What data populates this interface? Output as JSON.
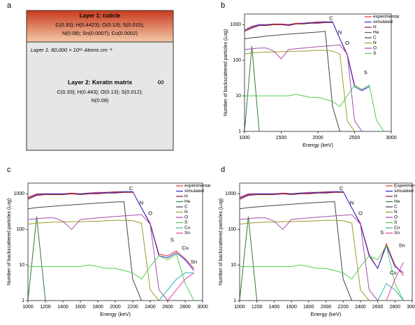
{
  "panels": {
    "labels": [
      "a",
      "b",
      "c",
      "d"
    ]
  },
  "diagram": {
    "layer1_title": "Layer 1: cuticle",
    "layer1_composition": [
      "C(0.33); H(0.4423); O(0.13); S(0.015);",
      "N(0.08); Sn(0.0007); Cu(0.0002)"
    ],
    "layer1_density": "Layer 1: 80,000 × 10¹⁵ Atoms cm⁻²",
    "layer2_title": "Layer 2: Keratin matrix",
    "layer2_symbol": "∞",
    "layer2_composition": [
      "C(0.33); H(0.443); O(0.13); S(0.012);",
      "N(0.08)"
    ]
  },
  "chart_data": [
    {
      "type": "line",
      "log_y": true,
      "xlabel": "Energy (keV)",
      "ylabel": "Number of backscattered particles (Log)",
      "x": [
        1000,
        1100,
        1200,
        1300,
        1400,
        1500,
        1600,
        1700,
        1800,
        1900,
        2000,
        2100,
        2200,
        2300,
        2400,
        2500,
        2600,
        2700,
        2800,
        2900,
        3000
      ],
      "xlim": [
        1000,
        3000
      ],
      "xticks": [
        1000,
        1500,
        2000,
        2500,
        3000
      ],
      "ylim": [
        1,
        2000
      ],
      "yticks": [
        1,
        10,
        100,
        1000
      ],
      "series": [
        {
          "name": "experimental",
          "color": "#e8312f",
          "values": [
            700,
            900,
            1000,
            1000,
            1050,
            1050,
            1000,
            1100,
            1100,
            1150,
            1200,
            1200,
            1200,
            400,
            150,
            20,
            15,
            20,
            null,
            null,
            null
          ]
        },
        {
          "name": "simulated",
          "color": "#2a2ad8",
          "values": [
            700,
            850,
            1000,
            1000,
            1000,
            1000,
            1000,
            1050,
            1100,
            1150,
            1150,
            1200,
            1200,
            400,
            140,
            18,
            14,
            18,
            null,
            null,
            null
          ]
        },
        {
          "name": "H",
          "color": "#8b1a1a",
          "values": [
            650,
            800,
            950,
            950,
            1000,
            1000,
            950,
            1050,
            1050,
            1100,
            1100,
            1150,
            1150,
            null,
            null,
            null,
            null,
            null,
            null,
            null,
            null
          ]
        },
        {
          "name": "He",
          "color": "#2e7d32",
          "values": [
            1,
            250,
            1,
            null,
            null,
            null,
            null,
            null,
            null,
            null,
            null,
            null,
            null,
            null,
            null,
            null,
            null,
            null,
            null,
            null,
            null
          ]
        },
        {
          "name": "C",
          "color": "#444444",
          "values": [
            400,
            430,
            450,
            480,
            500,
            520,
            540,
            560,
            580,
            600,
            620,
            650,
            5,
            1,
            null,
            null,
            null,
            null,
            null,
            null,
            null
          ]
        },
        {
          "name": "N",
          "color": "#9a9a2a",
          "values": [
            150,
            160,
            165,
            170,
            170,
            175,
            175,
            180,
            180,
            185,
            190,
            190,
            180,
            150,
            2,
            1,
            null,
            null,
            null,
            null,
            null
          ]
        },
        {
          "name": "O",
          "color": "#a64ca6",
          "values": [
            200,
            210,
            220,
            220,
            180,
            110,
            200,
            210,
            220,
            230,
            240,
            250,
            260,
            270,
            150,
            2,
            1,
            null,
            null,
            null,
            null
          ]
        },
        {
          "name": "S",
          "color": "#4cd04c",
          "values": [
            10,
            10,
            10,
            10,
            10,
            10,
            10,
            11,
            10,
            9,
            9,
            8,
            7,
            5,
            10,
            20,
            15,
            20,
            2,
            1,
            null
          ]
        }
      ],
      "annotations": [
        {
          "text": "C",
          "x": 2180,
          "y": 1500
        },
        {
          "text": "N",
          "x": 2300,
          "y": 600
        },
        {
          "text": "O",
          "x": 2400,
          "y": 300
        },
        {
          "text": "S",
          "x": 2650,
          "y": 45
        }
      ]
    },
    {
      "type": "line",
      "log_y": true,
      "xlabel": "Energy  (keV)",
      "ylabel": "Number of backscattered particles (Log)",
      "x": [
        1000,
        1100,
        1200,
        1300,
        1400,
        1500,
        1600,
        1700,
        1800,
        1900,
        2000,
        2100,
        2200,
        2300,
        2400,
        2500,
        2600,
        2700,
        2800,
        2900,
        3000
      ],
      "xlim": [
        1000,
        3000
      ],
      "xticks": [
        1000,
        1200,
        1400,
        1600,
        1800,
        2000,
        2200,
        2400,
        2600,
        2800,
        3000
      ],
      "ylim": [
        1,
        2000
      ],
      "yticks": [
        1,
        10,
        100,
        1000
      ],
      "series": [
        {
          "name": "experimental",
          "color": "#e8312f",
          "values": [
            800,
            1000,
            1000,
            1000,
            1000,
            1050,
            1000,
            1050,
            1100,
            1100,
            1150,
            1150,
            1150,
            400,
            150,
            20,
            18,
            25,
            15,
            8,
            null
          ]
        },
        {
          "name": "simulated",
          "color": "#2a2ad8",
          "values": [
            750,
            950,
            1000,
            1000,
            1000,
            1000,
            1000,
            1050,
            1050,
            1100,
            1100,
            1150,
            1150,
            400,
            140,
            18,
            16,
            22,
            14,
            7,
            null
          ]
        },
        {
          "name": "H",
          "color": "#8b1a1a",
          "values": [
            700,
            900,
            950,
            950,
            950,
            1000,
            950,
            1000,
            1000,
            1050,
            1050,
            1100,
            1100,
            null,
            null,
            null,
            null,
            null,
            null,
            null,
            null
          ]
        },
        {
          "name": "He",
          "color": "#2e7d32",
          "values": [
            1,
            230,
            1,
            null,
            null,
            null,
            null,
            null,
            null,
            null,
            null,
            null,
            null,
            null,
            null,
            null,
            null,
            null,
            null,
            null,
            null
          ]
        },
        {
          "name": "C",
          "color": "#444444",
          "values": [
            380,
            410,
            430,
            450,
            470,
            490,
            510,
            530,
            550,
            570,
            590,
            600,
            4,
            1,
            null,
            null,
            null,
            null,
            null,
            null,
            null
          ]
        },
        {
          "name": "N",
          "color": "#9a9a2a",
          "values": [
            140,
            150,
            155,
            160,
            160,
            165,
            165,
            170,
            170,
            175,
            180,
            180,
            175,
            150,
            2,
            1,
            null,
            null,
            null,
            null,
            null
          ]
        },
        {
          "name": "O",
          "color": "#a64ca6",
          "values": [
            190,
            200,
            210,
            210,
            170,
            100,
            190,
            200,
            210,
            220,
            230,
            240,
            250,
            260,
            140,
            2,
            1,
            null,
            null,
            null,
            null
          ]
        },
        {
          "name": "S",
          "color": "#4cd04c",
          "values": [
            9,
            9,
            9,
            9,
            9,
            9,
            9,
            10,
            9,
            8,
            8,
            7,
            6,
            4,
            9,
            18,
            14,
            20,
            3,
            1,
            null
          ]
        },
        {
          "name": "Cu",
          "color": "#2cb5b5",
          "values": [
            null,
            null,
            null,
            null,
            null,
            null,
            null,
            null,
            null,
            null,
            null,
            null,
            null,
            null,
            null,
            1,
            2,
            4,
            6,
            6,
            null
          ]
        },
        {
          "name": "Sn",
          "color": "#e040a0",
          "values": [
            null,
            null,
            null,
            null,
            null,
            null,
            null,
            null,
            null,
            null,
            null,
            null,
            null,
            null,
            null,
            null,
            1,
            2,
            4,
            6,
            null
          ]
        }
      ],
      "annotations": [
        {
          "text": "C",
          "x": 2180,
          "y": 1400
        },
        {
          "text": "N",
          "x": 2300,
          "y": 550
        },
        {
          "text": "O",
          "x": 2400,
          "y": 280
        },
        {
          "text": "S",
          "x": 2650,
          "y": 50
        },
        {
          "text": "Cu",
          "x": 2800,
          "y": 30
        },
        {
          "text": "Sn",
          "x": 2900,
          "y": 12
        }
      ]
    },
    {
      "type": "line",
      "log_y": true,
      "xlabel": "Energy (keV)",
      "ylabel": "Number of backscattered particles (Log)",
      "x": [
        1000,
        1100,
        1200,
        1300,
        1400,
        1500,
        1600,
        1700,
        1800,
        1900,
        2000,
        2100,
        2200,
        2300,
        2400,
        2500,
        2600,
        2700,
        2800,
        2900,
        3000
      ],
      "xlim": [
        1000,
        3000
      ],
      "xticks": [
        1000,
        1200,
        1400,
        1600,
        1800,
        2000,
        2200,
        2400,
        2600,
        2800,
        3000
      ],
      "ylim": [
        1,
        2000
      ],
      "yticks": [
        1,
        10,
        100,
        1000
      ],
      "series": [
        {
          "name": "Experimental",
          "color": "#e8312f",
          "values": [
            800,
            1000,
            1000,
            1000,
            1000,
            1050,
            1000,
            1050,
            1100,
            1100,
            1150,
            1150,
            1150,
            400,
            150,
            20,
            8,
            40,
            10,
            5,
            null
          ]
        },
        {
          "name": "simulated",
          "color": "#2a2ad8",
          "values": [
            750,
            950,
            1000,
            1000,
            1000,
            1000,
            1000,
            1050,
            1050,
            1100,
            1100,
            1150,
            1150,
            400,
            140,
            18,
            8,
            35,
            9,
            6,
            null
          ]
        },
        {
          "name": "H",
          "color": "#8b1a1a",
          "values": [
            700,
            900,
            950,
            950,
            950,
            1000,
            950,
            1000,
            1000,
            1050,
            1050,
            1100,
            1100,
            null,
            null,
            null,
            null,
            null,
            null,
            null,
            null
          ]
        },
        {
          "name": "He",
          "color": "#2e7d32",
          "values": [
            1,
            230,
            1,
            null,
            null,
            null,
            null,
            null,
            null,
            null,
            null,
            null,
            null,
            null,
            null,
            null,
            null,
            null,
            null,
            null,
            null
          ]
        },
        {
          "name": "C",
          "color": "#444444",
          "values": [
            380,
            410,
            430,
            450,
            470,
            490,
            510,
            530,
            550,
            570,
            590,
            600,
            4,
            1,
            null,
            null,
            null,
            null,
            null,
            null,
            null
          ]
        },
        {
          "name": "N",
          "color": "#9a9a2a",
          "values": [
            140,
            150,
            155,
            160,
            160,
            165,
            165,
            170,
            170,
            175,
            180,
            180,
            175,
            150,
            2,
            1,
            null,
            null,
            null,
            null,
            null
          ]
        },
        {
          "name": "O",
          "color": "#a64ca6",
          "values": [
            190,
            200,
            210,
            210,
            170,
            100,
            190,
            200,
            210,
            220,
            230,
            240,
            250,
            260,
            140,
            2,
            1,
            null,
            null,
            null,
            null
          ]
        },
        {
          "name": "S",
          "color": "#4cd04c",
          "values": [
            9,
            9,
            9,
            9,
            9,
            9,
            9,
            10,
            9,
            8,
            8,
            7,
            6,
            4,
            9,
            18,
            14,
            35,
            3,
            1,
            null
          ]
        },
        {
          "name": "Cu",
          "color": "#2cb5b5",
          "values": [
            null,
            null,
            null,
            null,
            null,
            null,
            null,
            null,
            null,
            null,
            null,
            null,
            null,
            null,
            null,
            null,
            1,
            3,
            2,
            1,
            null
          ]
        },
        {
          "name": "Sn",
          "color": "#e040a0",
          "values": [
            null,
            null,
            null,
            null,
            null,
            null,
            null,
            null,
            null,
            null,
            null,
            null,
            null,
            null,
            null,
            null,
            null,
            1,
            4,
            12,
            null
          ]
        }
      ],
      "annotations": [
        {
          "text": "C",
          "x": 2180,
          "y": 1400
        },
        {
          "text": "N",
          "x": 2300,
          "y": 550
        },
        {
          "text": "O",
          "x": 2400,
          "y": 280
        },
        {
          "text": "S",
          "x": 2650,
          "y": 80
        },
        {
          "text": "Cu",
          "x": 2780,
          "y": 6
        },
        {
          "text": "Sn",
          "x": 2880,
          "y": 35
        }
      ]
    }
  ]
}
